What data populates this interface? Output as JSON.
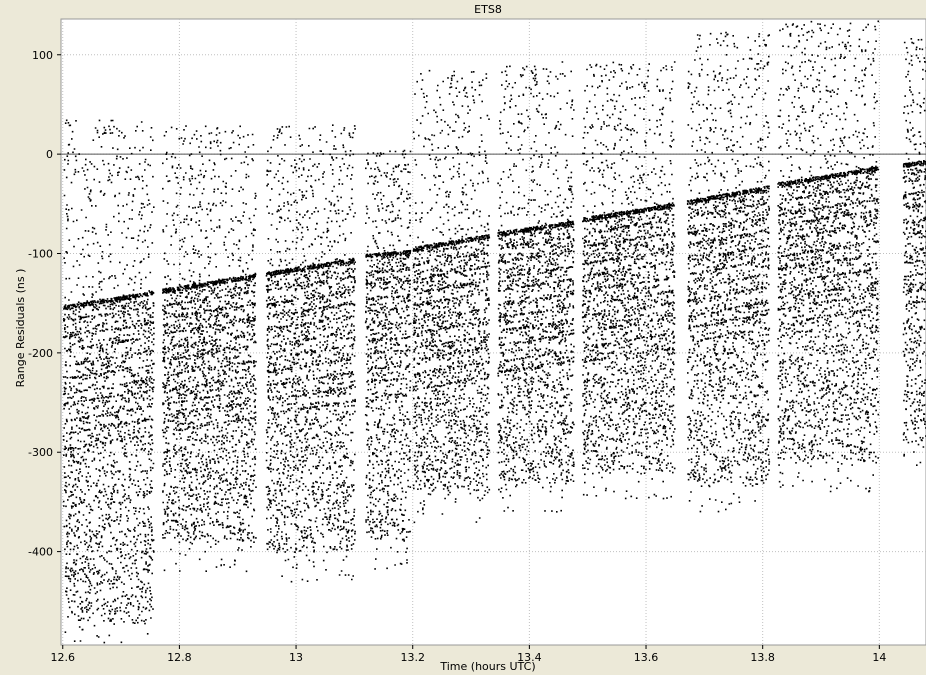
{
  "chart_data": {
    "type": "scatter",
    "title": "ETS8",
    "xlabel": "Time (hours UTC)",
    "ylabel": "Range Residuals (ns )",
    "xlim": [
      12.597,
      14.08
    ],
    "ylim": [
      -494,
      136
    ],
    "x_ticks": [
      12.6,
      12.8,
      13.0,
      13.2,
      13.4,
      13.6,
      13.8,
      14.0
    ],
    "x_tick_labels": [
      "12.6",
      "12.8",
      "13",
      "13.2",
      "13.4",
      "13.6",
      "13.8",
      "14"
    ],
    "y_ticks": [
      100,
      0,
      -100,
      -200,
      -300,
      -400
    ],
    "y_tick_labels": [
      "100",
      "0",
      "-100",
      "-200",
      "-300",
      "-400"
    ],
    "reference_line_y": 0,
    "grid": true,
    "grid_style": "dotted",
    "marker_color": "#000000",
    "background_color": "#ffffff",
    "frame_color": "#ece9d8",
    "series": [
      {
        "points_summary": "dense point cloud grouped into passes; each pass has a sharp upper edge rising slowly with time and a diffuse lower spread",
        "passes": [
          {
            "x_start": 12.6,
            "x_end": 12.755,
            "y_edge_start": -152,
            "y_edge_end": -137,
            "y_low": -470,
            "sparse_high": 35
          },
          {
            "x_start": 12.77,
            "x_end": 12.93,
            "y_edge_start": -135,
            "y_edge_end": -120,
            "y_low": -390,
            "sparse_high": 30
          },
          {
            "x_start": 12.948,
            "x_end": 13.1,
            "y_edge_start": -118,
            "y_edge_end": -104,
            "y_low": -400,
            "sparse_high": 30
          },
          {
            "x_start": 13.118,
            "x_end": 13.195,
            "y_edge_start": -100,
            "y_edge_end": -96,
            "y_low": -390,
            "sparse_high": 5
          },
          {
            "x_start": 13.2,
            "x_end": 13.33,
            "y_edge_start": -93,
            "y_edge_end": -80,
            "y_low": -340,
            "sparse_high": 85
          },
          {
            "x_start": 13.345,
            "x_end": 13.475,
            "y_edge_start": -78,
            "y_edge_end": -66,
            "y_low": -330,
            "sparse_high": 95
          },
          {
            "x_start": 13.49,
            "x_end": 13.648,
            "y_edge_start": -63,
            "y_edge_end": -49,
            "y_low": -320,
            "sparse_high": 95
          },
          {
            "x_start": 13.67,
            "x_end": 13.81,
            "y_edge_start": -46,
            "y_edge_end": -31,
            "y_low": -330,
            "sparse_high": 125
          },
          {
            "x_start": 13.825,
            "x_end": 13.997,
            "y_edge_start": -28,
            "y_edge_end": -12,
            "y_low": -310,
            "sparse_high": 136
          },
          {
            "x_start": 14.04,
            "x_end": 14.08,
            "y_edge_start": -9,
            "y_edge_end": -5,
            "y_low": -290,
            "sparse_high": 118
          }
        ]
      }
    ]
  }
}
